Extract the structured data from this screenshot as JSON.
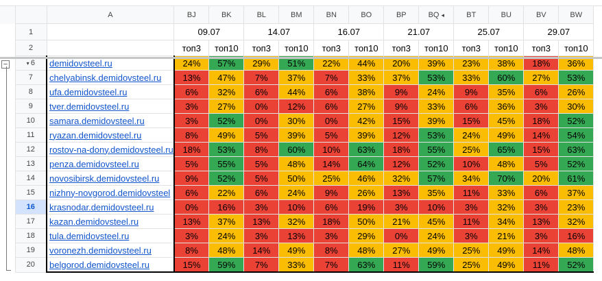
{
  "column_headers": [
    "A",
    "BJ",
    "BK",
    "BL",
    "BM",
    "BN",
    "BO",
    "BP",
    "BQ",
    "BT",
    "BU",
    "BV",
    "BW"
  ],
  "dates": [
    "09.07",
    "14.07",
    "16.07",
    "21.07",
    "25.07",
    "29.07"
  ],
  "sub_headers": [
    "топ3",
    "топ10"
  ],
  "row_numbers": [
    "1",
    "2",
    "6",
    "7",
    "8",
    "9",
    "10",
    "11",
    "12",
    "13",
    "14",
    "15",
    "16",
    "17",
    "18",
    "19",
    "20"
  ],
  "selected_row": "16",
  "group_toggle": "−",
  "colors": {
    "red": "#ea4335",
    "yellow": "#fbbc04",
    "green": "#34a853"
  },
  "rows": [
    {
      "site": "demidovsteel.ru",
      "cells": [
        [
          "24%",
          "y"
        ],
        [
          "57%",
          "g"
        ],
        [
          "29%",
          "y"
        ],
        [
          "51%",
          "g"
        ],
        [
          "22%",
          "y"
        ],
        [
          "44%",
          "y"
        ],
        [
          "20%",
          "y"
        ],
        [
          "39%",
          "y"
        ],
        [
          "23%",
          "y"
        ],
        [
          "38%",
          "y"
        ],
        [
          "18%",
          "r"
        ],
        [
          "36%",
          "y"
        ]
      ]
    },
    {
      "site": "chelyabinsk.demidovsteel.ru",
      "cells": [
        [
          "13%",
          "r"
        ],
        [
          "47%",
          "y"
        ],
        [
          "7%",
          "r"
        ],
        [
          "37%",
          "y"
        ],
        [
          "7%",
          "r"
        ],
        [
          "33%",
          "y"
        ],
        [
          "37%",
          "y"
        ],
        [
          "53%",
          "g"
        ],
        [
          "33%",
          "y"
        ],
        [
          "60%",
          "g"
        ],
        [
          "27%",
          "y"
        ],
        [
          "53%",
          "g"
        ]
      ]
    },
    {
      "site": "ufa.demidovsteel.ru",
      "cells": [
        [
          "6%",
          "r"
        ],
        [
          "32%",
          "y"
        ],
        [
          "6%",
          "r"
        ],
        [
          "44%",
          "y"
        ],
        [
          "6%",
          "r"
        ],
        [
          "38%",
          "y"
        ],
        [
          "9%",
          "r"
        ],
        [
          "24%",
          "y"
        ],
        [
          "9%",
          "r"
        ],
        [
          "35%",
          "y"
        ],
        [
          "6%",
          "r"
        ],
        [
          "26%",
          "y"
        ]
      ]
    },
    {
      "site": "tver.demidovsteel.ru",
      "cells": [
        [
          "3%",
          "r"
        ],
        [
          "27%",
          "y"
        ],
        [
          "0%",
          "r"
        ],
        [
          "12%",
          "r"
        ],
        [
          "6%",
          "r"
        ],
        [
          "27%",
          "y"
        ],
        [
          "9%",
          "r"
        ],
        [
          "33%",
          "y"
        ],
        [
          "6%",
          "r"
        ],
        [
          "36%",
          "y"
        ],
        [
          "3%",
          "r"
        ],
        [
          "30%",
          "y"
        ]
      ]
    },
    {
      "site": "samara.demidovsteel.ru",
      "cells": [
        [
          "3%",
          "r"
        ],
        [
          "52%",
          "g"
        ],
        [
          "0%",
          "r"
        ],
        [
          "30%",
          "y"
        ],
        [
          "0%",
          "r"
        ],
        [
          "42%",
          "y"
        ],
        [
          "15%",
          "r"
        ],
        [
          "39%",
          "y"
        ],
        [
          "15%",
          "r"
        ],
        [
          "45%",
          "y"
        ],
        [
          "18%",
          "r"
        ],
        [
          "52%",
          "g"
        ]
      ]
    },
    {
      "site": "ryazan.demidovsteel.ru",
      "cells": [
        [
          "8%",
          "r"
        ],
        [
          "49%",
          "y"
        ],
        [
          "5%",
          "r"
        ],
        [
          "39%",
          "y"
        ],
        [
          "5%",
          "r"
        ],
        [
          "39%",
          "y"
        ],
        [
          "12%",
          "r"
        ],
        [
          "53%",
          "g"
        ],
        [
          "24%",
          "y"
        ],
        [
          "49%",
          "y"
        ],
        [
          "14%",
          "r"
        ],
        [
          "54%",
          "g"
        ]
      ]
    },
    {
      "site": "rostov-na-donу.demidovsteel.ru",
      "cells": [
        [
          "18%",
          "r"
        ],
        [
          "53%",
          "g"
        ],
        [
          "8%",
          "r"
        ],
        [
          "60%",
          "g"
        ],
        [
          "10%",
          "r"
        ],
        [
          "63%",
          "g"
        ],
        [
          "18%",
          "r"
        ],
        [
          "55%",
          "g"
        ],
        [
          "25%",
          "y"
        ],
        [
          "65%",
          "g"
        ],
        [
          "15%",
          "r"
        ],
        [
          "63%",
          "g"
        ]
      ]
    },
    {
      "site": "penza.demidovsteel.ru",
      "cells": [
        [
          "5%",
          "r"
        ],
        [
          "55%",
          "g"
        ],
        [
          "5%",
          "r"
        ],
        [
          "48%",
          "y"
        ],
        [
          "14%",
          "r"
        ],
        [
          "64%",
          "g"
        ],
        [
          "12%",
          "r"
        ],
        [
          "52%",
          "g"
        ],
        [
          "10%",
          "r"
        ],
        [
          "48%",
          "y"
        ],
        [
          "5%",
          "r"
        ],
        [
          "52%",
          "g"
        ]
      ]
    },
    {
      "site": "novosibirsk.demidovsteel.ru",
      "cells": [
        [
          "9%",
          "r"
        ],
        [
          "52%",
          "g"
        ],
        [
          "5%",
          "r"
        ],
        [
          "50%",
          "y"
        ],
        [
          "25%",
          "y"
        ],
        [
          "46%",
          "y"
        ],
        [
          "32%",
          "y"
        ],
        [
          "57%",
          "g"
        ],
        [
          "34%",
          "y"
        ],
        [
          "70%",
          "g"
        ],
        [
          "20%",
          "y"
        ],
        [
          "61%",
          "g"
        ]
      ]
    },
    {
      "site": "nizhny-novgorod.demidovsteel",
      "cells": [
        [
          "6%",
          "r"
        ],
        [
          "22%",
          "y"
        ],
        [
          "6%",
          "r"
        ],
        [
          "24%",
          "y"
        ],
        [
          "9%",
          "r"
        ],
        [
          "26%",
          "y"
        ],
        [
          "13%",
          "r"
        ],
        [
          "35%",
          "y"
        ],
        [
          "11%",
          "r"
        ],
        [
          "33%",
          "y"
        ],
        [
          "6%",
          "r"
        ],
        [
          "37%",
          "y"
        ]
      ]
    },
    {
      "site": "krasnodar.demidovsteel.ru",
      "cells": [
        [
          "0%",
          "r"
        ],
        [
          "16%",
          "r"
        ],
        [
          "3%",
          "r"
        ],
        [
          "10%",
          "r"
        ],
        [
          "6%",
          "r"
        ],
        [
          "19%",
          "r"
        ],
        [
          "3%",
          "r"
        ],
        [
          "10%",
          "r"
        ],
        [
          "3%",
          "r"
        ],
        [
          "32%",
          "y"
        ],
        [
          "3%",
          "r"
        ],
        [
          "23%",
          "y"
        ]
      ]
    },
    {
      "site": "kazan.demidovsteel.ru",
      "cells": [
        [
          "13%",
          "r"
        ],
        [
          "37%",
          "y"
        ],
        [
          "13%",
          "r"
        ],
        [
          "32%",
          "y"
        ],
        [
          "18%",
          "r"
        ],
        [
          "50%",
          "y"
        ],
        [
          "21%",
          "y"
        ],
        [
          "45%",
          "y"
        ],
        [
          "11%",
          "r"
        ],
        [
          "34%",
          "y"
        ],
        [
          "13%",
          "r"
        ],
        [
          "32%",
          "y"
        ]
      ]
    },
    {
      "site": "tula.demidovsteel.ru",
      "cells": [
        [
          "3%",
          "r"
        ],
        [
          "24%",
          "y"
        ],
        [
          "3%",
          "r"
        ],
        [
          "13%",
          "r"
        ],
        [
          "3%",
          "r"
        ],
        [
          "29%",
          "y"
        ],
        [
          "0%",
          "r"
        ],
        [
          "24%",
          "y"
        ],
        [
          "3%",
          "r"
        ],
        [
          "21%",
          "y"
        ],
        [
          "3%",
          "r"
        ],
        [
          "16%",
          "r"
        ]
      ]
    },
    {
      "site": "voronezh.demidovsteel.ru",
      "cells": [
        [
          "8%",
          "r"
        ],
        [
          "48%",
          "y"
        ],
        [
          "14%",
          "r"
        ],
        [
          "49%",
          "y"
        ],
        [
          "8%",
          "r"
        ],
        [
          "48%",
          "y"
        ],
        [
          "27%",
          "y"
        ],
        [
          "49%",
          "y"
        ],
        [
          "25%",
          "y"
        ],
        [
          "49%",
          "y"
        ],
        [
          "14%",
          "r"
        ],
        [
          "48%",
          "y"
        ]
      ]
    },
    {
      "site": "belgorod.demidovsteel.ru",
      "cells": [
        [
          "15%",
          "r"
        ],
        [
          "59%",
          "g"
        ],
        [
          "7%",
          "r"
        ],
        [
          "33%",
          "y"
        ],
        [
          "7%",
          "r"
        ],
        [
          "63%",
          "g"
        ],
        [
          "11%",
          "r"
        ],
        [
          "59%",
          "g"
        ],
        [
          "25%",
          "y"
        ],
        [
          "49%",
          "y"
        ],
        [
          "11%",
          "r"
        ],
        [
          "52%",
          "g"
        ]
      ]
    }
  ]
}
